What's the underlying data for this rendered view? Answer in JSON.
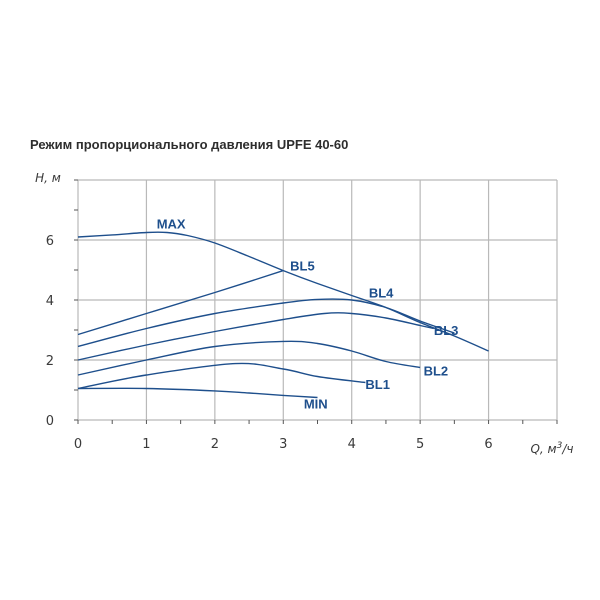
{
  "chart_data": {
    "type": "line",
    "title": "Режим пропорционального давления UPFE 40-60",
    "ylabel": "H, м",
    "xlabel_base": "Q, м",
    "xlabel_sup": "3",
    "xlabel_tail": "/ч",
    "xlim": [
      0,
      7
    ],
    "ylim": [
      0,
      8
    ],
    "grid": true,
    "x_ticks": [
      "0",
      "1",
      "2",
      "3",
      "4",
      "5",
      "6"
    ],
    "y_ticks": [
      "0",
      "2",
      "4",
      "6"
    ],
    "colors": {
      "curve": "#1e4f8c",
      "label": "#1e4f8c",
      "grid": "#b9b9b9",
      "axis": "#555555"
    },
    "series": [
      {
        "name": "MAX",
        "x": [
          0,
          0.5,
          1,
          1.3,
          1.6,
          2,
          2.5,
          3,
          3.5,
          4,
          4.5,
          5,
          5.5,
          6
        ],
        "y": [
          6.1,
          6.17,
          6.25,
          6.25,
          6.15,
          5.9,
          5.45,
          4.98,
          4.55,
          4.15,
          3.75,
          3.25,
          2.8,
          2.3
        ]
      },
      {
        "name": "BL5",
        "x": [
          0,
          1,
          2,
          3
        ],
        "y": [
          2.85,
          3.55,
          4.25,
          4.98
        ]
      },
      {
        "name": "BL4",
        "x": [
          0,
          1,
          2,
          3,
          3.5,
          4,
          4.5,
          5,
          5.5
        ],
        "y": [
          2.45,
          3.05,
          3.55,
          3.9,
          4.02,
          4.0,
          3.75,
          3.3,
          2.9
        ]
      },
      {
        "name": "BL3",
        "x": [
          0,
          1,
          2,
          3,
          3.6,
          4,
          4.5,
          5,
          5.2
        ],
        "y": [
          2.0,
          2.5,
          2.95,
          3.35,
          3.55,
          3.55,
          3.4,
          3.15,
          3.05
        ]
      },
      {
        "name": "BL2",
        "x": [
          0,
          1,
          2,
          3,
          3.5,
          4,
          4.5,
          5
        ],
        "y": [
          1.5,
          2.0,
          2.45,
          2.62,
          2.55,
          2.3,
          1.95,
          1.75
        ]
      },
      {
        "name": "BL1",
        "x": [
          0,
          1,
          2.3,
          3,
          3.5,
          4.2
        ],
        "y": [
          1.05,
          1.5,
          1.88,
          1.7,
          1.45,
          1.25
        ]
      },
      {
        "name": "MIN",
        "x": [
          0,
          1,
          2,
          2.5,
          3,
          3.5
        ],
        "y": [
          1.05,
          1.05,
          0.97,
          0.9,
          0.82,
          0.75
        ]
      }
    ],
    "label_positions_data": [
      {
        "name": "MAX",
        "x": 1.15,
        "y": 6.55
      },
      {
        "name": "BL5",
        "x": 3.1,
        "y": 5.15
      },
      {
        "name": "BL4",
        "x": 4.25,
        "y": 4.25
      },
      {
        "name": "BL3",
        "x": 5.2,
        "y": 3.0
      },
      {
        "name": "BL2",
        "x": 5.05,
        "y": 1.65
      },
      {
        "name": "BL1",
        "x": 4.2,
        "y": 1.2
      },
      {
        "name": "MIN",
        "x": 3.3,
        "y": 0.55
      }
    ]
  }
}
